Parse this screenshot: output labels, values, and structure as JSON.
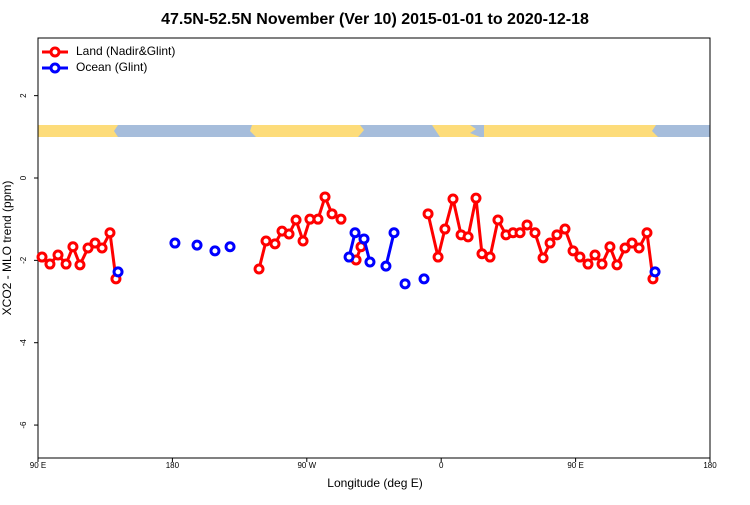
{
  "chart_data": {
    "type": "line",
    "title": "47.5N-52.5N November (Ver 10)   2015-01-01 to 2020-12-18",
    "x_label": "Longitude (deg E)",
    "y_label": "XCO2 - MLO trend (ppm)",
    "xlim": [
      90,
      540
    ],
    "ylim": [
      -6.8,
      3.4
    ],
    "xticks": [
      {
        "value": 90,
        "label": "90 E"
      },
      180,
      {
        "value": 270,
        "label": "90 W"
      },
      {
        "value": 360,
        "label": "0"
      },
      {
        "value": 450,
        "label": "90 E"
      },
      {
        "value": 540,
        "label": "180"
      }
    ],
    "yticks": [
      -6,
      -4,
      -2,
      0,
      2
    ],
    "legend": "topleft",
    "series": [
      {
        "name": "Land (Nadir&Glint)",
        "color": "#ff0000",
        "x": [
          92.7,
          98.0,
          103.4,
          108.8,
          113.4,
          118.1,
          123.5,
          128.2,
          132.9,
          138.2,
          142.2,
          null,
          238.0,
          242.7,
          248.7,
          253.4,
          258.1,
          262.8,
          267.5,
          272.1,
          277.5,
          282.2,
          286.9,
          292.9,
          null,
          303.0,
          306.3,
          null,
          351.2,
          357.9,
          362.5,
          367.9,
          373.3,
          378.0,
          383.3,
          387.3,
          392.7,
          398.0,
          403.4,
          408.1,
          412.8,
          417.5,
          422.8,
          428.2,
          432.9,
          437.5,
          442.9,
          448.3,
          452.9,
          458.3,
          463.0,
          467.7,
          473.0,
          477.7,
          483.1,
          487.8,
          492.5,
          497.8,
          501.8
        ],
        "values": [
          -1.92,
          -2.09,
          -1.87,
          -2.09,
          -1.67,
          -2.11,
          -1.7,
          -1.58,
          -1.7,
          -1.33,
          -2.45,
          null,
          -2.21,
          -1.53,
          -1.6,
          -1.29,
          -1.36,
          -1.02,
          -1.53,
          -1.0,
          -1.0,
          -0.46,
          -0.87,
          -1.0,
          null,
          -1.99,
          -1.67,
          null,
          -0.87,
          -1.92,
          -1.24,
          -0.51,
          -1.38,
          -1.43,
          -0.49,
          -1.84,
          -1.92,
          -1.02,
          -1.38,
          -1.33,
          -1.33,
          -1.14,
          -1.33,
          -1.94,
          -1.58,
          -1.38,
          -1.24,
          -1.77,
          -1.92,
          -2.09,
          -1.87,
          -2.09,
          -1.67,
          -2.11,
          -1.7,
          -1.58,
          -1.7,
          -1.33,
          -2.45
        ]
      },
      {
        "name": "Ocean (Glint)",
        "color": "#0000ff",
        "x": [
          143.6,
          null,
          181.7,
          null,
          196.5,
          null,
          208.5,
          null,
          218.6,
          null,
          298.3,
          302.3,
          308.3,
          312.3,
          null,
          323.0,
          328.4,
          null,
          335.8,
          null,
          348.5,
          null,
          503.2
        ],
        "values": [
          -2.28,
          null,
          -1.58,
          null,
          -1.63,
          null,
          -1.77,
          null,
          -1.67,
          null,
          -1.92,
          -1.33,
          -1.48,
          -2.04,
          null,
          -2.14,
          -1.33,
          null,
          -2.57,
          null,
          -2.45,
          null,
          -2.28
        ]
      }
    ]
  }
}
